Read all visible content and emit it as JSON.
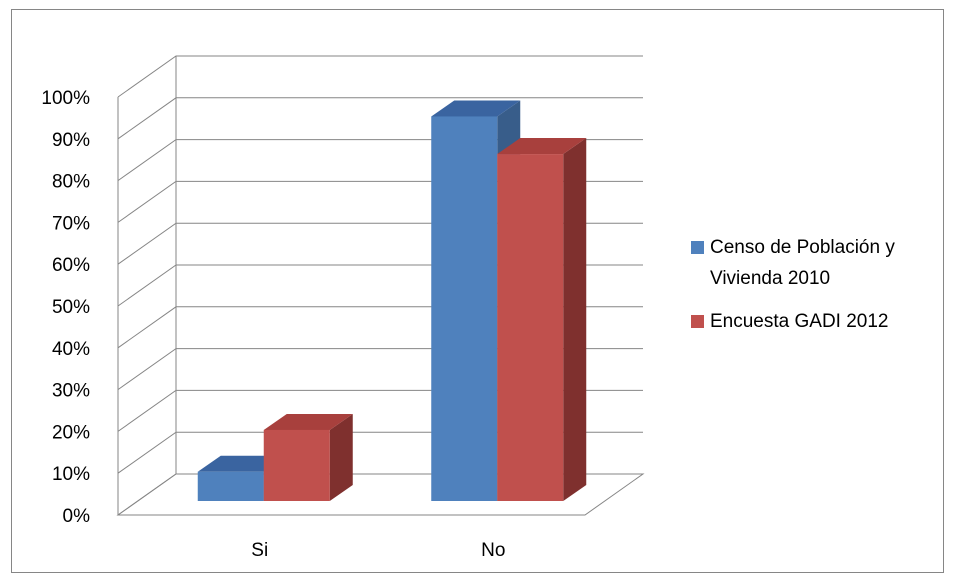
{
  "chart_data": {
    "type": "bar",
    "style": "3d-clustered-column",
    "categories": [
      "Si",
      "No"
    ],
    "series": [
      {
        "name": "Censo de Población y Vivienda 2010",
        "values": [
          7,
          92
        ],
        "color": "#4f81bd",
        "side_color": "#385d8a",
        "top_color": "#3a64a0"
      },
      {
        "name": "Encuesta GADI 2012",
        "values": [
          17,
          83
        ],
        "color": "#c0504d",
        "side_color": "#7f302e",
        "top_color": "#a8403d"
      }
    ],
    "y_ticks": [
      "0%",
      "10%",
      "20%",
      "30%",
      "40%",
      "50%",
      "60%",
      "70%",
      "80%",
      "90%",
      "100%"
    ],
    "ylim": [
      0,
      100
    ],
    "grid": true,
    "legend_position": "right"
  }
}
